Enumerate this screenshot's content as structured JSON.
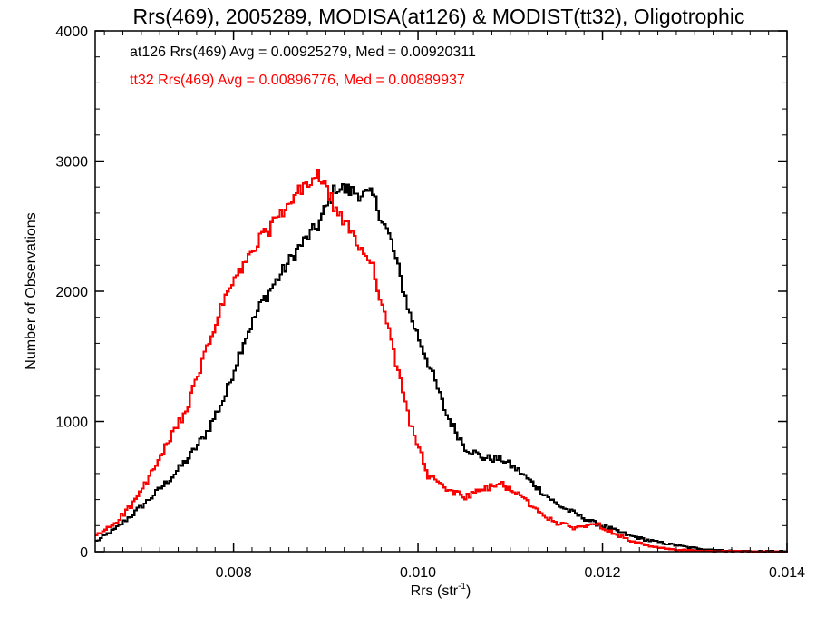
{
  "chart_data": {
    "type": "line",
    "title": "Rrs(469), 2005289, MODISA(at126) & MODIST(tt32), Oligotrophic",
    "xlabel": "Rrs (str",
    "xlabel_sup": "-1",
    "xlabel_end": ")",
    "ylabel": "Number of Observations",
    "xlim": [
      0.0065,
      0.014
    ],
    "ylim": [
      0,
      4000
    ],
    "xticks": [
      0.008,
      0.01,
      0.012,
      0.014
    ],
    "xtick_labels": [
      "0.008",
      "0.010",
      "0.012",
      "0.014"
    ],
    "yticks": [
      0,
      1000,
      2000,
      3000,
      4000
    ],
    "ytick_labels": [
      "0",
      "1000",
      "2000",
      "3000",
      "4000"
    ],
    "grid": false,
    "step": "histogram",
    "annotations": [
      {
        "text": "at126 Rrs(469) Avg = 0.00925279, Med = 0.00920311",
        "color": "#000000"
      },
      {
        "text": "tt32 Rrs(469) Avg = 0.00896776, Med = 0.00889937",
        "color": "#ff0000"
      }
    ],
    "series": [
      {
        "color": "#000000",
        "x": [
          0.0065,
          0.0067,
          0.0069,
          0.0071,
          0.0073,
          0.0075,
          0.0077,
          0.0079,
          0.0081,
          0.0083,
          0.0085,
          0.0087,
          0.0089,
          0.0091,
          0.0093,
          0.0095,
          0.0097,
          0.0099,
          0.0101,
          0.0103,
          0.0105,
          0.0107,
          0.0109,
          0.0111,
          0.0113,
          0.0115,
          0.0117,
          0.0119,
          0.0121,
          0.0123,
          0.0125,
          0.0127,
          0.0129,
          0.0131,
          0.0133,
          0.0135,
          0.0137,
          0.014
        ],
        "values": [
          80,
          170,
          290,
          420,
          560,
          720,
          920,
          1200,
          1620,
          1920,
          2130,
          2340,
          2500,
          2800,
          2760,
          2730,
          2380,
          1820,
          1450,
          1050,
          800,
          720,
          710,
          610,
          480,
          360,
          290,
          220,
          170,
          120,
          85,
          60,
          35,
          20,
          10,
          5,
          3,
          2
        ]
      },
      {
        "color": "#ff0000",
        "x": [
          0.0065,
          0.0067,
          0.0069,
          0.0071,
          0.0073,
          0.0075,
          0.0077,
          0.0079,
          0.0081,
          0.0083,
          0.0085,
          0.0087,
          0.0089,
          0.0091,
          0.0093,
          0.0095,
          0.0097,
          0.0099,
          0.0101,
          0.0103,
          0.0105,
          0.0107,
          0.0109,
          0.0111,
          0.0113,
          0.0115,
          0.0117,
          0.0119,
          0.0121,
          0.0123,
          0.0125,
          0.0127,
          0.0129,
          0.0131,
          0.0133,
          0.0135,
          0.0137,
          0.014
        ],
        "values": [
          120,
          220,
          370,
          600,
          860,
          1130,
          1560,
          1960,
          2200,
          2420,
          2580,
          2760,
          2900,
          2630,
          2400,
          2200,
          1600,
          1000,
          580,
          480,
          420,
          480,
          520,
          430,
          300,
          220,
          180,
          220,
          150,
          80,
          40,
          20,
          10,
          5,
          3,
          2,
          1,
          0
        ]
      }
    ]
  }
}
